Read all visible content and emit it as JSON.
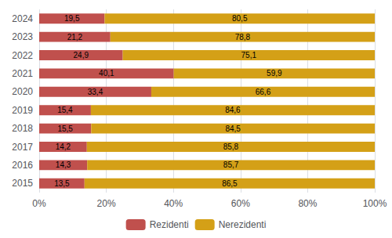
{
  "chart_data": {
    "type": "bar",
    "orientation": "horizontal",
    "stacked": true,
    "categories": [
      "2015",
      "2016",
      "2017",
      "2018",
      "2019",
      "2020",
      "2021",
      "2022",
      "2023",
      "2024"
    ],
    "series": [
      {
        "name": "Rezidenti",
        "color": "#C0504D",
        "values": [
          13.5,
          14.3,
          14.2,
          15.5,
          15.4,
          33.4,
          40.1,
          24.9,
          21.2,
          19.5
        ],
        "value_labels": [
          "13,5",
          "14,3",
          "14,2",
          "15,5",
          "15,4",
          "33,4",
          "40,1",
          "24,9",
          "21,2",
          "19,5"
        ]
      },
      {
        "name": "Nerezidenti",
        "color": "#D4A017",
        "values": [
          86.5,
          85.7,
          85.8,
          84.5,
          84.6,
          66.6,
          59.9,
          75.1,
          78.8,
          80.5
        ],
        "value_labels": [
          "86,5",
          "85,7",
          "85,8",
          "84,5",
          "84,6",
          "66,6",
          "59,9",
          "75,1",
          "78,8",
          "80,5"
        ]
      }
    ],
    "xlim": [
      0,
      100
    ],
    "xticks": [
      {
        "value": 0,
        "label": "0%"
      },
      {
        "value": 20,
        "label": "20%"
      },
      {
        "value": 40,
        "label": "40%"
      },
      {
        "value": 60,
        "label": "60%"
      },
      {
        "value": 80,
        "label": "80%"
      },
      {
        "value": 100,
        "label": "100%"
      }
    ],
    "grid": true,
    "legend": "bottom",
    "data_labels": true
  }
}
